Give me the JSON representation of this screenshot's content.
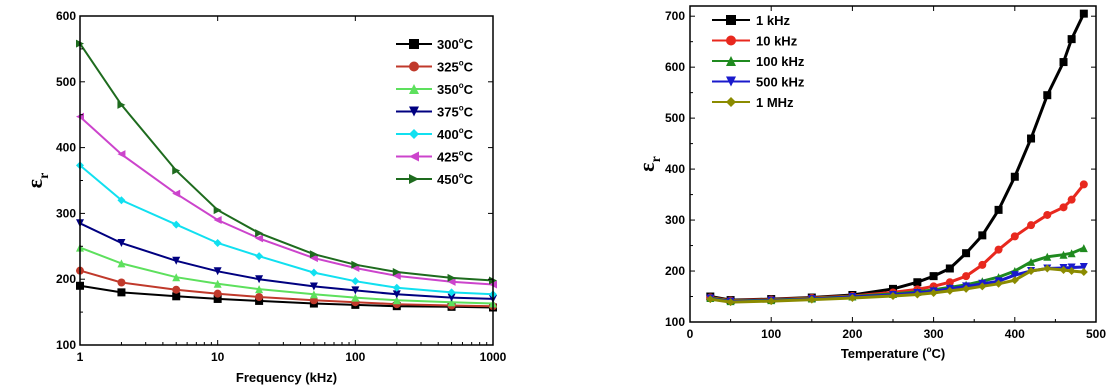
{
  "chart_data": [
    {
      "type": "line",
      "xscale": "log",
      "xlabel": "Frequency (kHz)",
      "ylabel_base": "ε",
      "ylabel_sub": "r",
      "xlim": [
        1,
        1000
      ],
      "ylim": [
        100,
        600
      ],
      "xticks": [
        1,
        10,
        100,
        1000
      ],
      "yticks": [
        100,
        200,
        300,
        400,
        500,
        600
      ],
      "legend_position": "top-right",
      "x": [
        1,
        2,
        5,
        10,
        20,
        50,
        100,
        200,
        500,
        1000
      ],
      "series": [
        {
          "name": "300°C",
          "label_num": "300",
          "label_sup": "o",
          "label_unit": "C",
          "color": "#000000",
          "marker": "square",
          "values": [
            190,
            180,
            174,
            170,
            167,
            163,
            161,
            159,
            158,
            157
          ]
        },
        {
          "name": "325°C",
          "label_num": "325",
          "label_sup": "o",
          "label_unit": "C",
          "color": "#c0392b",
          "marker": "circle",
          "values": [
            213,
            195,
            184,
            178,
            173,
            168,
            165,
            162,
            160,
            159
          ]
        },
        {
          "name": "350°C",
          "label_num": "350",
          "label_sup": "o",
          "label_unit": "C",
          "color": "#5de05d",
          "marker": "triangle-up",
          "values": [
            248,
            224,
            203,
            193,
            185,
            177,
            172,
            168,
            165,
            163
          ]
        },
        {
          "name": "375°C",
          "label_num": "375",
          "label_sup": "o",
          "label_unit": "C",
          "color": "#000080",
          "marker": "triangle-down",
          "values": [
            285,
            255,
            228,
            212,
            200,
            189,
            183,
            177,
            172,
            170
          ]
        },
        {
          "name": "400°C",
          "label_num": "400",
          "label_sup": "o",
          "label_unit": "C",
          "color": "#11e0f0",
          "marker": "diamond",
          "values": [
            373,
            320,
            283,
            255,
            235,
            210,
            197,
            187,
            180,
            177
          ]
        },
        {
          "name": "425°C",
          "label_num": "425",
          "label_sup": "o",
          "label_unit": "C",
          "color": "#cc44cc",
          "marker": "triangle-left",
          "values": [
            447,
            390,
            330,
            290,
            262,
            232,
            217,
            205,
            196,
            192
          ]
        },
        {
          "name": "450°C",
          "label_num": "450",
          "label_sup": "o",
          "label_unit": "C",
          "color": "#1e6b1e",
          "marker": "triangle-right",
          "values": [
            558,
            465,
            365,
            305,
            270,
            238,
            222,
            211,
            202,
            198
          ]
        }
      ]
    },
    {
      "type": "line",
      "xlabel_pre": "Temperature (",
      "xlabel_sup": "o",
      "xlabel_post": "C)",
      "ylabel_base": "ε",
      "ylabel_sub": "r",
      "xlim": [
        0,
        500
      ],
      "ylim": [
        100,
        720
      ],
      "xticks": [
        0,
        100,
        200,
        300,
        400,
        500
      ],
      "yticks": [
        100,
        200,
        300,
        400,
        500,
        600,
        700
      ],
      "legend_position": "top-left",
      "x": [
        25,
        50,
        100,
        150,
        200,
        250,
        280,
        300,
        320,
        340,
        360,
        380,
        400,
        420,
        440,
        460,
        470,
        485
      ],
      "series": [
        {
          "name": "1 kHz",
          "color": "#000000",
          "marker": "square",
          "values": [
            150,
            143,
            145,
            148,
            153,
            165,
            178,
            190,
            205,
            235,
            270,
            320,
            385,
            460,
            545,
            610,
            655,
            705
          ]
        },
        {
          "name": "10 kHz",
          "color": "#e8281e",
          "marker": "circle",
          "values": [
            148,
            142,
            144,
            147,
            151,
            158,
            164,
            170,
            178,
            190,
            212,
            242,
            268,
            290,
            310,
            325,
            340,
            370
          ]
        },
        {
          "name": "100 kHz",
          "color": "#1f8a1f",
          "marker": "triangle-up",
          "values": [
            147,
            141,
            143,
            146,
            150,
            155,
            159,
            163,
            168,
            173,
            180,
            188,
            200,
            218,
            228,
            232,
            235,
            245
          ]
        },
        {
          "name": "500 kHz",
          "color": "#1a1acc",
          "marker": "triangle-down",
          "values": [
            146,
            140,
            142,
            145,
            149,
            153,
            157,
            160,
            165,
            170,
            175,
            180,
            192,
            200,
            205,
            206,
            207,
            208
          ]
        },
        {
          "name": "1 MHz",
          "color": "#8b8b00",
          "marker": "diamond",
          "values": [
            145,
            139,
            141,
            144,
            147,
            151,
            154,
            157,
            161,
            165,
            170,
            175,
            182,
            200,
            205,
            202,
            200,
            198
          ]
        }
      ]
    }
  ]
}
